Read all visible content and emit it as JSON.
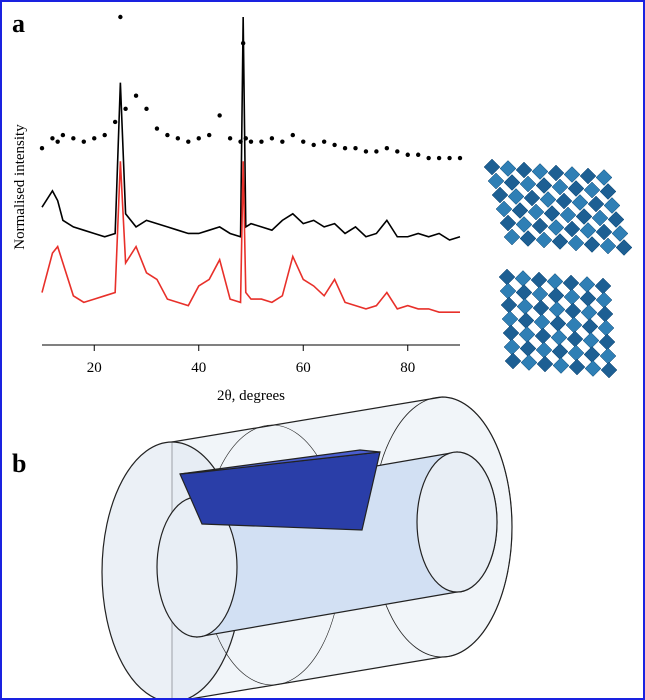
{
  "panels": {
    "a": "a",
    "b": "b"
  },
  "chart_data": {
    "type": "line",
    "x_label": "2θ, degrees",
    "y_label": "Normalised intensity",
    "xlim": [
      10,
      90
    ],
    "ylim": [
      0,
      100
    ],
    "xticks": [
      20,
      40,
      60,
      80
    ],
    "x": [
      10,
      12,
      13,
      14,
      16,
      18,
      20,
      22,
      24,
      25,
      26,
      28,
      30,
      32,
      34,
      36,
      38,
      40,
      42,
      44,
      46,
      48,
      48.5,
      49,
      50,
      52,
      54,
      56,
      58,
      60,
      62,
      64,
      66,
      68,
      70,
      72,
      74,
      76,
      78,
      80,
      82,
      84,
      86,
      88,
      90
    ],
    "series": [
      {
        "color": "#000000",
        "style": "dots",
        "values": [
          60,
          63,
          62,
          64,
          63,
          62,
          63,
          64,
          68,
          100,
          72,
          76,
          72,
          66,
          64,
          63,
          62,
          63,
          64,
          70,
          63,
          62,
          92,
          63,
          62,
          62,
          63,
          62,
          64,
          62,
          61,
          62,
          61,
          60,
          60,
          59,
          59,
          60,
          59,
          58,
          58,
          57,
          57,
          57,
          57
        ]
      },
      {
        "color": "#000000",
        "style": "line",
        "values": [
          42,
          47,
          44,
          38,
          36,
          35,
          34,
          33,
          34,
          80,
          40,
          36,
          38,
          37,
          36,
          35,
          34,
          34,
          35,
          36,
          34,
          33,
          100,
          36,
          37,
          36,
          35,
          38,
          40,
          37,
          38,
          36,
          37,
          34,
          36,
          33,
          34,
          38,
          33,
          33,
          34,
          33,
          34,
          32,
          33
        ]
      },
      {
        "color": "#e8302a",
        "style": "line",
        "values": [
          16,
          28,
          30,
          25,
          15,
          13,
          14,
          15,
          16,
          56,
          25,
          30,
          22,
          20,
          14,
          13,
          12,
          18,
          20,
          26,
          14,
          13,
          56,
          16,
          14,
          14,
          13,
          15,
          27,
          20,
          18,
          15,
          20,
          13,
          12,
          11,
          12,
          16,
          11,
          12,
          11,
          11,
          10,
          10,
          10
        ]
      }
    ]
  }
}
